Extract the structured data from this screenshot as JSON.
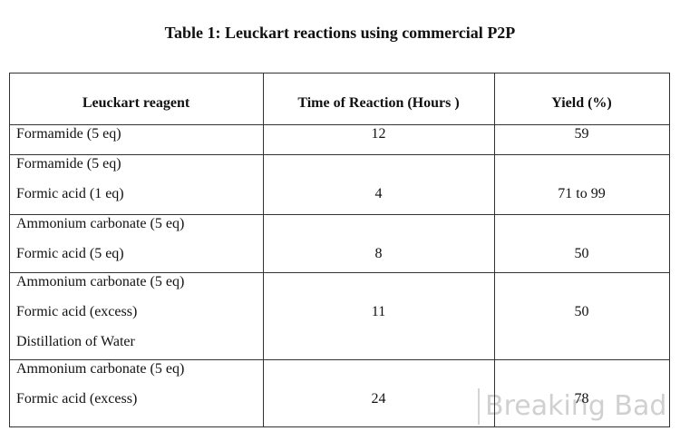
{
  "title": "Table 1: Leuckart reactions using commercial P2P",
  "table": {
    "header": [
      "Leuckart reagent",
      "Time of Reaction (Hours )",
      "Yield (%)"
    ],
    "rows": [
      {
        "reagents": [
          "Formamide (5 eq)"
        ],
        "time": 12,
        "yield": 59
      },
      {
        "reagents": [
          "Formamide (5 eq)",
          "Formic acid (1 eq)"
        ],
        "time": 4,
        "yield": "71 to 99"
      },
      {
        "reagents": [
          "Ammonium carbonate (5 eq)",
          "Formic acid (5 eq)"
        ],
        "time": 8,
        "yield": 50
      },
      {
        "reagents": [
          "Ammonium carbonate (5 eq)",
          "Formic acid (excess)",
          "Distillation of Water"
        ],
        "time": 11,
        "yield": 50
      },
      {
        "reagents": [
          "Ammonium carbonate (5 eq)",
          "Formic acid (excess)"
        ],
        "time": 24,
        "yield": 78
      }
    ]
  },
  "watermark": "Breaking Bad"
}
